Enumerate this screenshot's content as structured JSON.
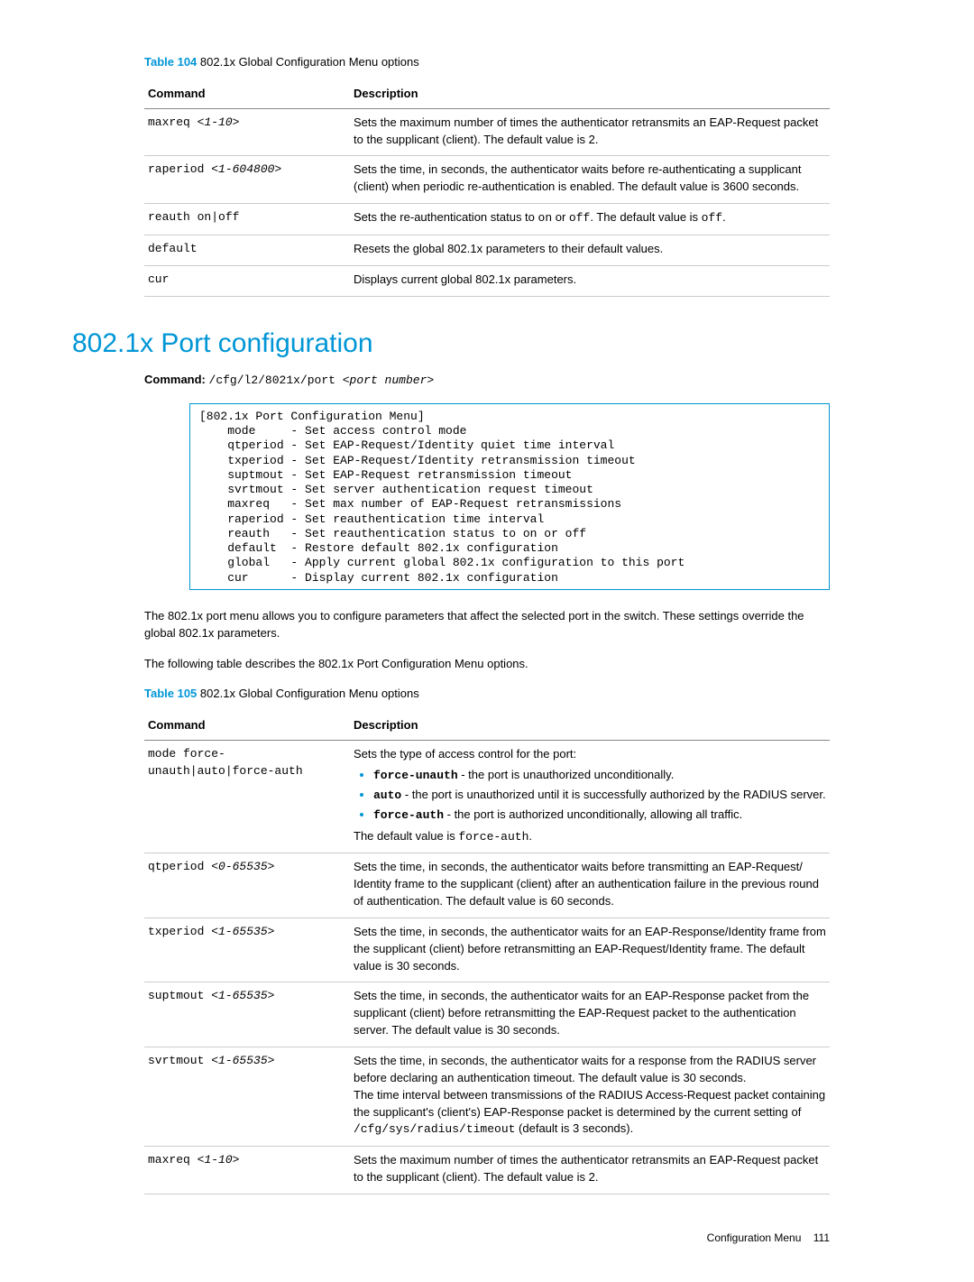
{
  "table104": {
    "caption_label": "Table 104",
    "caption_text": "802.1x Global Configuration Menu options",
    "col1_header": "Command",
    "col2_header": "Description",
    "rows": [
      {
        "cmd": "maxreq ",
        "arg": "<1-10>",
        "desc_html": "Sets the maximum number of times the authenticator retransmits an EAP-Request packet to the supplicant (client). The default value is 2."
      },
      {
        "cmd": "raperiod ",
        "arg": "<1-604800>",
        "desc_html": "Sets the time, in seconds, the authenticator waits before re-authenticating a supplicant (client) when periodic re-authentication is enabled. The default value is 3600 seconds."
      },
      {
        "cmd": "reauth on|off",
        "arg": "",
        "desc_html": "Sets the re-authentication status to <span class='mono'>on</span> or <span class='mono'>off</span>. The default value is <span class='mono'>off</span>."
      },
      {
        "cmd": "default",
        "arg": "",
        "desc_html": "Resets the global 802.1x parameters to their default values."
      },
      {
        "cmd": "cur",
        "arg": "",
        "desc_html": "Displays current global 802.1x parameters."
      }
    ]
  },
  "section_title": "802.1x Port configuration",
  "command_line": {
    "label": "Command:",
    "path": "/cfg/l2/8021x/port ",
    "arg": "<port number>"
  },
  "menu_text": "[802.1x Port Configuration Menu]\n    mode     - Set access control mode\n    qtperiod - Set EAP-Request/Identity quiet time interval\n    txperiod - Set EAP-Request/Identity retransmission timeout\n    suptmout - Set EAP-Request retransmission timeout\n    svrtmout - Set server authentication request timeout\n    maxreq   - Set max number of EAP-Request retransmissions\n    raperiod - Set reauthentication time interval\n    reauth   - Set reauthentication status to on or off\n    default  - Restore default 802.1x configuration\n    global   - Apply current global 802.1x configuration to this port\n    cur      - Display current 802.1x configuration",
  "para1": "The 802.1x port menu allows you to configure parameters that affect the selected port in the switch. These settings override the global 802.1x parameters.",
  "para2": "The following table describes the 802.1x Port Configuration Menu options.",
  "table105": {
    "caption_label": "Table 105",
    "caption_text": "802.1x Global Configuration Menu options",
    "col1_header": "Command",
    "col2_header": "Description",
    "rows": [
      {
        "cmd": "mode force-\nunauth|auto|force-auth",
        "arg": "",
        "desc_html": "Sets the type of access control for the port:<ul class='opts'><li><span class='mono'><b>force-unauth</b></span> - the port is unauthorized unconditionally.</li><li><span class='mono'><b>auto</b></span> - the port is unauthorized until it is successfully authorized by the RADIUS server.</li><li><span class='mono'><b>force-auth</b></span> - the port is authorized unconditionally, allowing all traffic.</li></ul>The default value is <span class='mono'>force-auth</span>."
      },
      {
        "cmd": "qtperiod ",
        "arg": "<0-65535>",
        "desc_html": "Sets the time, in seconds, the authenticator waits before transmitting an EAP-Request/ Identity frame to the supplicant (client) after an authentication failure in the previous round of authentication. The default value is 60 seconds."
      },
      {
        "cmd": "txperiod ",
        "arg": "<1-65535>",
        "desc_html": "Sets the time, in seconds, the authenticator waits for an EAP-Response/Identity frame from the supplicant (client) before retransmitting an EAP-Request/Identity frame. The default value is 30 seconds."
      },
      {
        "cmd": "suptmout ",
        "arg": "<1-65535>",
        "desc_html": "Sets the time, in seconds, the authenticator waits for an EAP-Response packet from the supplicant (client) before retransmitting the EAP-Request packet to the authentication server. The default value is 30 seconds."
      },
      {
        "cmd": "svrtmout ",
        "arg": "<1-65535>",
        "desc_html": "Sets the time, in seconds, the authenticator waits for a response from the RADIUS server before declaring an authentication timeout. The default value is 30 seconds.<br>The time interval between transmissions of the RADIUS Access-Request packet containing the supplicant's (client's) EAP-Response packet is determined by the current setting of <span class='mono'>/cfg/sys/radius/timeout</span> (default is 3 seconds)."
      },
      {
        "cmd": "maxreq ",
        "arg": "<1-10>",
        "desc_html": "Sets the maximum number of times the authenticator retransmits an EAP-Request packet to the supplicant (client). The default value is 2."
      }
    ]
  },
  "footer": {
    "text": "Configuration Menu",
    "page": "111"
  }
}
